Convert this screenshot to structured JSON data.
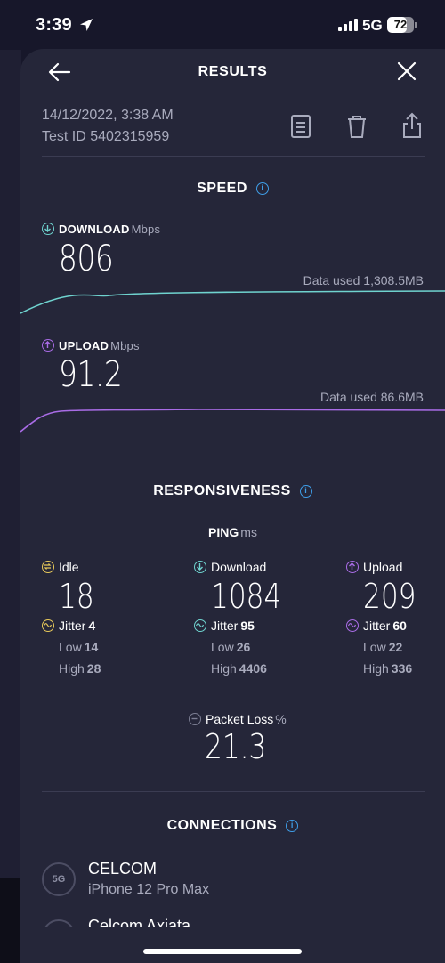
{
  "status": {
    "time": "3:39",
    "network": "5G",
    "battery": "72",
    "battery_level": 0.72
  },
  "header": {
    "title": "RESULTS"
  },
  "meta": {
    "date": "14/12/2022, 3:38 AM",
    "test_id": "Test ID 5402315959"
  },
  "speed": {
    "title": "SPEED",
    "download": {
      "label": "DOWNLOAD",
      "unit": "Mbps",
      "value": "806",
      "data_used": "Data used 1,308.5MB"
    },
    "upload": {
      "label": "UPLOAD",
      "unit": "Mbps",
      "value": "91.2",
      "data_used": "Data used 86.6MB"
    }
  },
  "responsiveness": {
    "title": "RESPONSIVENESS",
    "ping_label": "PING",
    "ping_unit": "ms",
    "idle": {
      "label": "Idle",
      "value": "18",
      "jitter_label": "Jitter",
      "jitter": "4",
      "low_label": "Low",
      "low": "14",
      "high_label": "High",
      "high": "28"
    },
    "download": {
      "label": "Download",
      "value": "1084",
      "jitter_label": "Jitter",
      "jitter": "95",
      "low_label": "Low",
      "low": "26",
      "high_label": "High",
      "high": "4406"
    },
    "upload": {
      "label": "Upload",
      "value": "209",
      "jitter_label": "Jitter",
      "jitter": "60",
      "low_label": "Low",
      "low": "22",
      "high_label": "High",
      "high": "336"
    },
    "packet_loss": {
      "label": "Packet Loss",
      "unit": "%",
      "value": "21.3"
    }
  },
  "connections": {
    "title": "CONNECTIONS",
    "items": [
      {
        "badge": "5G",
        "name": "CELCOM",
        "device": "iPhone 12 Pro Max"
      },
      {
        "name": "Celcom Axiata"
      }
    ]
  },
  "colors": {
    "download": "#6fd3cf",
    "upload": "#a96ce6",
    "idle": "#e8c95a",
    "info": "#3f9ee8",
    "card": "#252639"
  }
}
